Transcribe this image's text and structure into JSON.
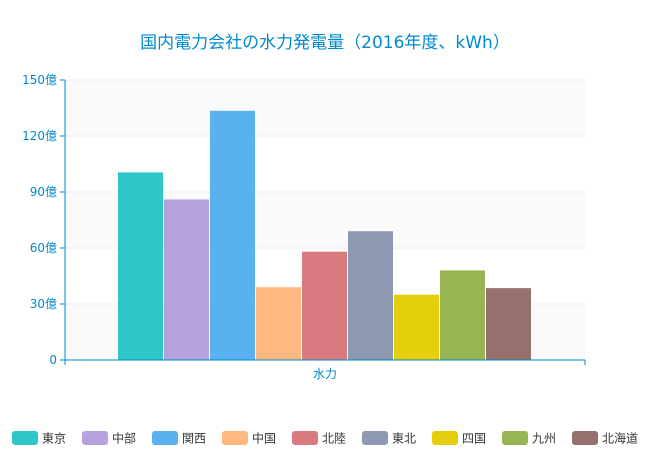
{
  "chart_data": {
    "type": "bar",
    "title": "国内電力会社の水力発電量（2016年度、kWh）",
    "xlabel": "",
    "ylabel": "",
    "categories": [
      "水力"
    ],
    "ylim": [
      0,
      150
    ],
    "y_ticks": [
      0,
      30,
      60,
      90,
      120,
      150
    ],
    "y_tick_labels": [
      "0",
      "30億",
      "60億",
      "90億",
      "120億",
      "150億"
    ],
    "legend_position": "bottom",
    "grid": true,
    "series": [
      {
        "name": "東京",
        "values": [
          100.5
        ],
        "color": "#2EC7C9"
      },
      {
        "name": "中部",
        "values": [
          86
        ],
        "color": "#B6A2DE"
      },
      {
        "name": "関西",
        "values": [
          133.5
        ],
        "color": "#5AB1EF"
      },
      {
        "name": "中国",
        "values": [
          39
        ],
        "color": "#FFB980"
      },
      {
        "name": "北陸",
        "values": [
          58
        ],
        "color": "#D87A80"
      },
      {
        "name": "東北",
        "values": [
          69
        ],
        "color": "#8D98B3"
      },
      {
        "name": "四国",
        "values": [
          35
        ],
        "color": "#E5CF0D"
      },
      {
        "name": "九州",
        "values": [
          48
        ],
        "color": "#97B552"
      },
      {
        "name": "北海道",
        "values": [
          38.5
        ],
        "color": "#95706D"
      }
    ],
    "colors": {
      "title": "#008ACD",
      "axis": "#008ACD",
      "grid": "#EEEEEE",
      "band": "#FAFAFA",
      "legend_text": "#333333"
    }
  }
}
